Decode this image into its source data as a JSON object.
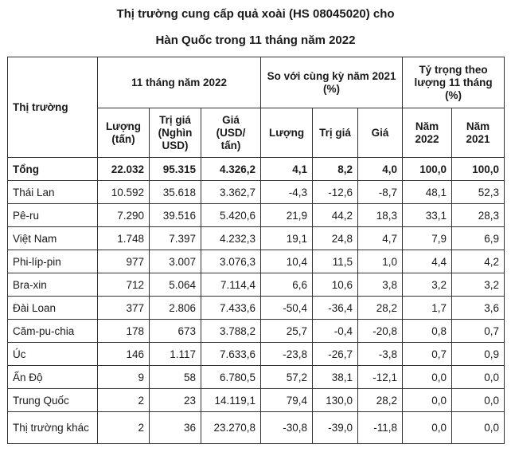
{
  "title_line1": "Thị trường cung cấp quả xoài (HS 08045020) cho",
  "title_line2": "Hàn Quốc trong 11 tháng năm 2022",
  "headers": {
    "market": "Thị trường",
    "group1": "11 tháng năm 2022",
    "group2": "So với cùng kỳ năm 2021 (%)",
    "group3": "Tỷ trọng theo lượng 11 tháng (%)",
    "volume": "Lượng (tấn)",
    "value": "Trị giá (Nghìn USD)",
    "price": "Giá (USD/ tấn)",
    "chg_volume": "Lượng",
    "chg_value": "Trị giá",
    "chg_price": "Giá",
    "share_2022": "Năm 2022",
    "share_2021": "Năm 2021"
  },
  "rows": [
    [
      "Tổng",
      "22.032",
      "95.315",
      "4.326,2",
      "4,1",
      "8,2",
      "4,0",
      "100,0",
      "100,0"
    ],
    [
      "Thái Lan",
      "10.592",
      "35.618",
      "3.362,7",
      "-4,3",
      "-12,6",
      "-8,7",
      "48,1",
      "52,3"
    ],
    [
      "Pê-ru",
      "7.290",
      "39.516",
      "5.420,6",
      "21,9",
      "44,2",
      "18,3",
      "33,1",
      "28,3"
    ],
    [
      "Việt Nam",
      "1.748",
      "7.397",
      "4.232,3",
      "19,1",
      "24,8",
      "4,7",
      "7,9",
      "6,9"
    ],
    [
      "Phi-líp-pin",
      "977",
      "3.007",
      "3.076,3",
      "10,4",
      "11,5",
      "1,0",
      "4,4",
      "4,2"
    ],
    [
      "Bra-xin",
      "712",
      "5.064",
      "7.114,4",
      "6,6",
      "10,6",
      "3,8",
      "3,2",
      "3,2"
    ],
    [
      "Đài Loan",
      "377",
      "2.806",
      "7.433,6",
      "-50,4",
      "-36,4",
      "28,2",
      "1,7",
      "3,6"
    ],
    [
      "Căm-pu-chia",
      "178",
      "673",
      "3.788,2",
      "25,7",
      "-0,4",
      "-20,8",
      "0,8",
      "0,7"
    ],
    [
      "Úc",
      "146",
      "1.117",
      "7.633,6",
      "-23,8",
      "-26,7",
      "-3,8",
      "0,7",
      "0,9"
    ],
    [
      "Ấn Độ",
      "9",
      "58",
      "6.780,5",
      "57,2",
      "38,1",
      "-12,1",
      "0,0",
      "0,0"
    ],
    [
      "Trung Quốc",
      "2",
      "23",
      "14.119,1",
      "79,4",
      "130,0",
      "28,2",
      "0,0",
      "0,0"
    ],
    [
      "Thị trường khác",
      "2",
      "36",
      "23.270,8",
      "-30,8",
      "-39,0",
      "-11,8",
      "0,0",
      "0,0"
    ]
  ]
}
